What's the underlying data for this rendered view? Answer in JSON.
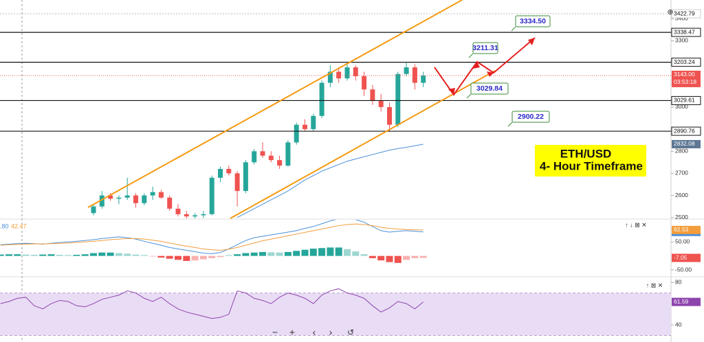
{
  "chart_data": [
    {
      "type": "candlestick",
      "annotation_lines": [
        "ETH/USD",
        "4- Hour Timeframe"
      ],
      "open": [
        2520,
        2550,
        2600,
        2585,
        2590,
        2600,
        2565,
        2600,
        2615,
        2590,
        2540,
        2515,
        2505,
        2510,
        2515,
        2680,
        2720,
        2700,
        2620,
        2750,
        2800,
        2780,
        2760,
        2735,
        2840,
        2920,
        2900,
        2960,
        3110,
        3160,
        3130,
        3180,
        3140,
        3080,
        3030,
        3000,
        2920,
        3150,
        3180,
        3110
      ],
      "high": [
        2560,
        2620,
        2610,
        2600,
        2680,
        2610,
        2610,
        2640,
        2625,
        2600,
        2560,
        2530,
        2520,
        2530,
        2690,
        2730,
        2735,
        2710,
        2760,
        2810,
        2840,
        2800,
        2780,
        2850,
        2930,
        2945,
        2970,
        3120,
        3190,
        3180,
        3200,
        3190,
        3160,
        3100,
        3060,
        3020,
        3160,
        3200,
        3195,
        3160
      ],
      "low": [
        2510,
        2540,
        2575,
        2560,
        2580,
        2545,
        2555,
        2580,
        2585,
        2530,
        2505,
        2495,
        2495,
        2498,
        2510,
        2660,
        2690,
        2550,
        2610,
        2740,
        2770,
        2750,
        2720,
        2730,
        2830,
        2890,
        2890,
        2950,
        3090,
        3110,
        3120,
        3120,
        3050,
        3010,
        2980,
        2890,
        2910,
        3140,
        3080,
        3090
      ],
      "close": [
        2550,
        2600,
        2585,
        2590,
        2600,
        2565,
        2600,
        2615,
        2590,
        2540,
        2515,
        2505,
        2510,
        2515,
        2680,
        2720,
        2700,
        2620,
        2750,
        2800,
        2780,
        2760,
        2735,
        2840,
        2920,
        2900,
        2960,
        3110,
        3160,
        3130,
        3180,
        3140,
        3080,
        3030,
        3000,
        2920,
        3150,
        3180,
        3110,
        3143
      ],
      "up_color": "#26a69a",
      "down_color": "#ef5350",
      "ma": {
        "color": "#4a90d9",
        "values": [
          null,
          null,
          null,
          null,
          null,
          null,
          null,
          null,
          null,
          null,
          null,
          null,
          null,
          null,
          null,
          null,
          null,
          2500,
          2520,
          2540,
          2560,
          2580,
          2600,
          2620,
          2645,
          2670,
          2690,
          2710,
          2725,
          2740,
          2755,
          2765,
          2775,
          2785,
          2795,
          2805,
          2812,
          2818,
          2825,
          2832
        ]
      },
      "ma_last": 2832.08,
      "ylim": [
        2496,
        3485
      ],
      "yticks": [
        3400,
        3300,
        3000,
        2800,
        2700,
        2600,
        2500
      ],
      "levels": [
        3338.47,
        3203.24,
        3029.61,
        2890.76
      ],
      "high_mark": 3422.79,
      "last_price": {
        "value": 3143,
        "label": "3143.00"
      },
      "countdown": "03:53:18",
      "targets": [
        {
          "value": 3334.5,
          "label": "3334.50"
        },
        3211.31,
        3029.84,
        2900.22
      ]
    },
    {
      "type": "macd",
      "header": [
        ".80",
        "42.47"
      ],
      "histogram": {
        "up_color": "#26a69a",
        "down_color": "#ef5350",
        "values": [
          5,
          6,
          6,
          5,
          4,
          5,
          6,
          4,
          3,
          4,
          6,
          10,
          12,
          12,
          10,
          8,
          5,
          3,
          -2,
          -6,
          -10,
          -14,
          -18,
          -16,
          -12,
          -8,
          -4,
          3,
          6,
          10,
          12,
          14,
          13,
          12,
          14,
          18,
          22,
          26,
          28,
          30,
          30,
          24,
          16,
          6,
          -8,
          -16,
          -22,
          -25,
          -14,
          -8,
          -7.05
        ]
      },
      "series": [
        {
          "color": "#4a90d9",
          "values": [
            40,
            42,
            44,
            45,
            44,
            42,
            45,
            48,
            50,
            52,
            55,
            58,
            62,
            65,
            68,
            65,
            60,
            52,
            45,
            38,
            30,
            25,
            20,
            15,
            10,
            8,
            12,
            25,
            40,
            55,
            65,
            70,
            75,
            80,
            85,
            90,
            98,
            105,
            115,
            125,
            132,
            135,
            130,
            120,
            105,
            90,
            85,
            88,
            90,
            88,
            85.48
          ]
        },
        {
          "color": "#f39c3c",
          "values": [
            38,
            40,
            41,
            42,
            43,
            43,
            44,
            45,
            46,
            48,
            50,
            52,
            55,
            58,
            60,
            62,
            62,
            60,
            56,
            52,
            46,
            40,
            35,
            30,
            25,
            22,
            20,
            24,
            30,
            38,
            46,
            54,
            60,
            66,
            72,
            78,
            84,
            90,
            96,
            102,
            108,
            112,
            114,
            112,
            108,
            102,
            98,
            96,
            94,
            93,
            92.53
          ]
        }
      ],
      "ylim": [
        -67,
        129
      ],
      "yticks": [
        {
          "value": 50,
          "label": "50.00"
        },
        {
          "value": -50,
          "label": "-50.00"
        }
      ]
    },
    {
      "type": "rsi",
      "color": "#8e44ad",
      "values": [
        60,
        62,
        65,
        66,
        58,
        55,
        60,
        63,
        62,
        58,
        57,
        60,
        64,
        66,
        68,
        72,
        70,
        65,
        62,
        66,
        60,
        55,
        52,
        50,
        48,
        46,
        47,
        50,
        72,
        70,
        65,
        63,
        60,
        66,
        70,
        68,
        65,
        60,
        68,
        72,
        74,
        70,
        68,
        65,
        58,
        52,
        56,
        62,
        60,
        55,
        61.59
      ],
      "band": [
        30,
        70
      ],
      "ylim": [
        29,
        84
      ],
      "yticks": [
        80,
        40
      ]
    }
  ]
}
